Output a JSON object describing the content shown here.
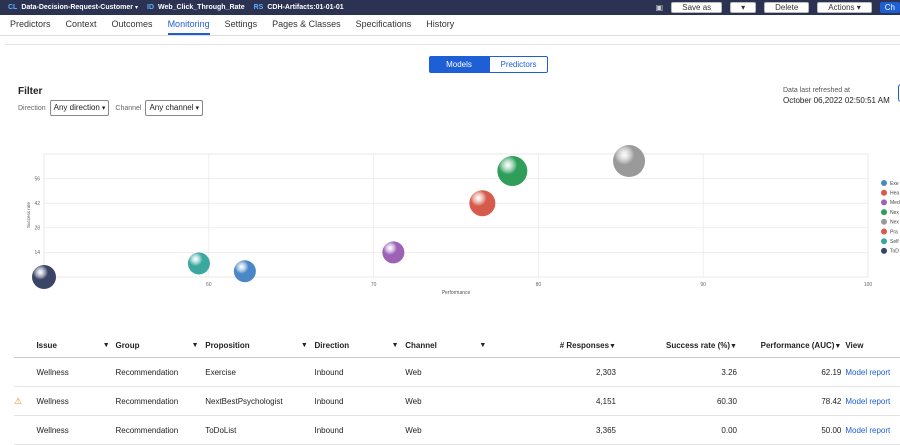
{
  "header": {
    "cl_tag": "CL",
    "cl_value": "Data-Decision-Request-Customer",
    "id_tag": "ID",
    "id_value": "Web_Click_Through_Rate",
    "rs_tag": "RS",
    "rs_value": "CDH-Artifacts:01-01-01",
    "save_as": "Save as",
    "delete": "Delete",
    "actions": "Actions",
    "check_label": "Ch",
    "dropdown_chevron": "▾"
  },
  "tabs": [
    "Predictors",
    "Context",
    "Outcomes",
    "Monitoring",
    "Settings",
    "Pages & Classes",
    "Specifications",
    "History"
  ],
  "active_tab": "Monitoring",
  "toggle": {
    "models": "Models",
    "predictors": "Predictors"
  },
  "filter": {
    "title": "Filter",
    "direction_label": "Direction",
    "direction_value": "Any direction",
    "channel_label": "Channel",
    "channel_value": "Any channel"
  },
  "refresh": {
    "label": "Data last refreshed at",
    "date": "October 06,2022 02:50:51 AM"
  },
  "chart_data": {
    "type": "scatter",
    "xlabel": "Performance",
    "ylabel": "Success rate",
    "xlim": [
      50,
      100
    ],
    "ylim": [
      0,
      70
    ],
    "xticks": [
      50,
      60,
      70,
      80,
      90,
      100
    ],
    "yticks": [
      14,
      28,
      42,
      56
    ],
    "legend_position": "right",
    "series": [
      {
        "name": "Exe",
        "color": "#4a87c7",
        "x": 62.19,
        "y": 3.26
      },
      {
        "name": "Hea",
        "color": "#d65b4a",
        "x": 76.6,
        "y": 42
      },
      {
        "name": "Med",
        "color": "#9b62b5",
        "x": 71.2,
        "y": 14
      },
      {
        "name": "Nex",
        "color": "#2e9e5a",
        "x": 78.42,
        "y": 60.3
      },
      {
        "name": "Nex",
        "color": "#9a9a9a",
        "x": 85.5,
        "y": 66
      },
      {
        "name": "Pra",
        "color": "#d65b4a",
        "x": 76.6,
        "y": 42
      },
      {
        "name": "Self",
        "color": "#3aa89e",
        "x": 59.4,
        "y": 7.7
      },
      {
        "name": "ToD",
        "color": "#3a4566",
        "x": 50,
        "y": 0
      }
    ],
    "points": [
      {
        "x": 50.0,
        "y": 0.0,
        "color": "#3a4566",
        "r": 12
      },
      {
        "x": 59.4,
        "y": 7.7,
        "color": "#3aa89e",
        "r": 11
      },
      {
        "x": 62.19,
        "y": 3.26,
        "color": "#4a87c7",
        "r": 11
      },
      {
        "x": 71.2,
        "y": 14.0,
        "color": "#9b62b5",
        "r": 11
      },
      {
        "x": 76.6,
        "y": 42.0,
        "color": "#d65b4a",
        "r": 13
      },
      {
        "x": 78.42,
        "y": 60.3,
        "color": "#2e9e5a",
        "r": 15
      },
      {
        "x": 85.5,
        "y": 66.0,
        "color": "#9a9a9a",
        "r": 16
      }
    ]
  },
  "table": {
    "headers": [
      "Issue",
      "Group",
      "Proposition",
      "Direction",
      "Channel",
      "# Responses",
      "Success rate (%)",
      "Performance (AUC)",
      "View"
    ],
    "filter_icon": "▼",
    "rows": [
      {
        "warn": "",
        "issue": "Wellness",
        "group": "Recommendation",
        "proposition": "Exercise",
        "direction": "Inbound",
        "channel": "Web",
        "responses": "2,303",
        "success": "3.26",
        "performance": "62.19",
        "view": "Model report"
      },
      {
        "warn": "⚠",
        "issue": "Wellness",
        "group": "Recommendation",
        "proposition": "NextBestPsychologist",
        "direction": "Inbound",
        "channel": "Web",
        "responses": "4,151",
        "success": "60.30",
        "performance": "78.42",
        "view": "Model report"
      },
      {
        "warn": "",
        "issue": "Wellness",
        "group": "Recommendation",
        "proposition": "ToDoList",
        "direction": "Inbound",
        "channel": "Web",
        "responses": "3,365",
        "success": "0.00",
        "performance": "50.00",
        "view": "Model report"
      }
    ]
  }
}
